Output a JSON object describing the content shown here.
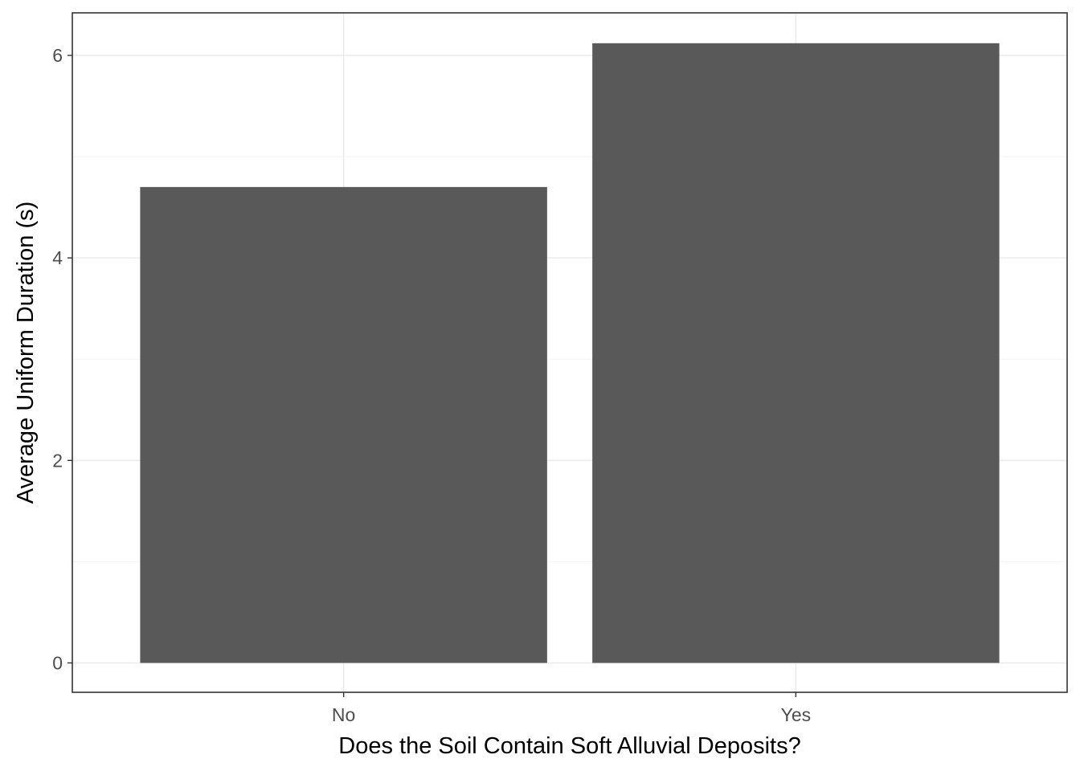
{
  "chart_data": {
    "type": "bar",
    "categories": [
      "No",
      "Yes"
    ],
    "values": [
      4.7,
      6.12
    ],
    "xlabel": "Does the Soil Contain Soft Alluvial Deposits?",
    "ylabel": "Average Uniform Duration (s)",
    "ylim": [
      -0.29,
      6.42
    ],
    "yticks": [
      0,
      2,
      4,
      6
    ],
    "ytick_labels": [
      "0",
      "2",
      "4",
      "6"
    ],
    "grid": true,
    "legend": "none",
    "colors": {
      "bar": "#595959",
      "panel_border": "#333333",
      "grid_major": "#ebebeb",
      "grid_minor": "#f2f2f2",
      "tick_label": "#4d4d4d",
      "axis_title": "#000000"
    }
  }
}
